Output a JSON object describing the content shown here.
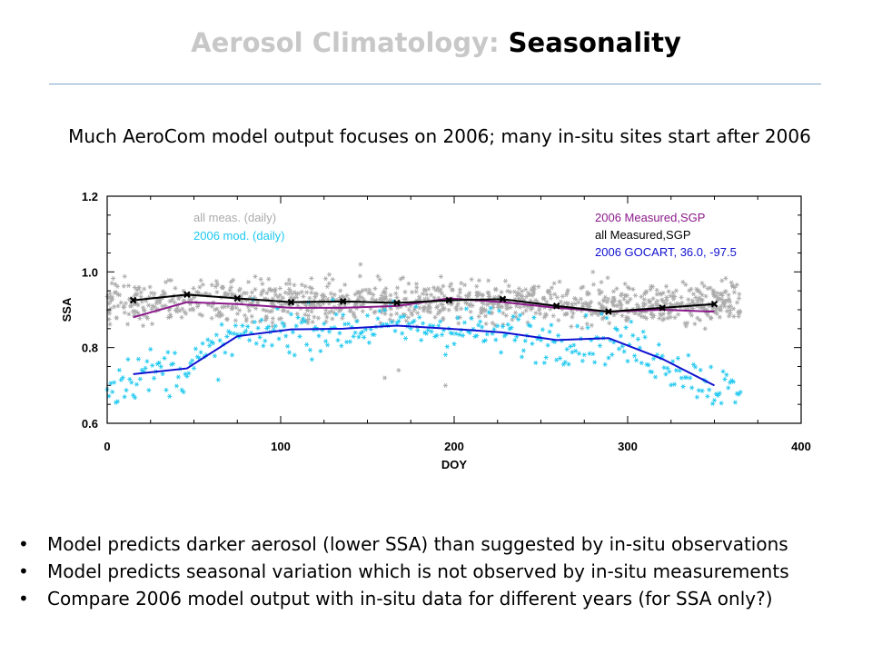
{
  "slide": {
    "title_part1": "Aerosol Climatology: ",
    "title_part2": "Seasonality",
    "subtitle": "Much AeroCom model output focuses on 2006; many in-situ sites start after 2006",
    "bullets": [
      "Model predicts darker aerosol (lower SSA) than suggested by in-situ observations",
      "Model predicts seasonal variation which is not observed by in-situ measurements",
      "Compare 2006 model output with in-situ data for different years (for SSA only?)"
    ],
    "bullet_glyph": "•"
  },
  "chart_data": {
    "type": "scatter",
    "xlabel": "DOY",
    "ylabel": "SSA",
    "xlim": [
      0,
      400
    ],
    "ylim": [
      0.6,
      1.2
    ],
    "xticks": [
      0,
      100,
      200,
      300,
      400
    ],
    "yticks": [
      0.6,
      0.8,
      1.0,
      1.2
    ],
    "xtick_labels": [
      "0",
      "100",
      "200",
      "300",
      "400"
    ],
    "ytick_labels": [
      "0.6",
      "0.8",
      "1.0",
      "1.2"
    ],
    "grid": false,
    "legend_left": [
      {
        "label": "all meas. (daily)",
        "color": "#aaaaaa"
      },
      {
        "label": "2006 mod. (daily)",
        "color": "#1ec8f0"
      }
    ],
    "legend_right": [
      {
        "label": "2006 Measured,SGP",
        "color": "#8b1a8b"
      },
      {
        "label": "all Measured,SGP",
        "color": "#000000"
      },
      {
        "label": "2006 GOCART,  36.0,  -97.5",
        "color": "#1010d0"
      }
    ],
    "scatter_series": [
      {
        "name": "all meas. (daily)",
        "color": "#aaaaaa",
        "marker": "asterisk",
        "x_range": [
          0,
          365
        ],
        "center": 0.92,
        "spread": 0.05,
        "outliers": [
          [
            146,
            1.02
          ],
          [
            160,
            0.72
          ],
          [
            168,
            0.74
          ],
          [
            195,
            0.7
          ],
          [
            210,
            0.98
          ],
          [
            280,
            1.0
          ],
          [
            130,
            0.98
          ]
        ]
      },
      {
        "name": "2006 mod. (daily)",
        "color": "#1ec8f0",
        "marker": "asterisk",
        "x_range": [
          0,
          365
        ]
      }
    ],
    "line_series": [
      {
        "name": "all Measured,SGP",
        "color": "#000000",
        "marker": "x",
        "x": [
          15,
          46,
          75,
          106,
          136,
          167,
          197,
          228,
          259,
          289,
          320,
          350
        ],
        "y": [
          0.925,
          0.94,
          0.93,
          0.92,
          0.922,
          0.918,
          0.925,
          0.928,
          0.91,
          0.895,
          0.905,
          0.915
        ]
      },
      {
        "name": "2006 Measured,SGP",
        "color": "#8b1a8b",
        "x": [
          15,
          46,
          75,
          106,
          136,
          167,
          197,
          228,
          259,
          289,
          320,
          350
        ],
        "y": [
          0.88,
          0.92,
          0.915,
          0.905,
          0.905,
          0.91,
          0.93,
          0.92,
          0.905,
          0.895,
          0.9,
          0.895
        ]
      },
      {
        "name": "2006 GOCART,  36.0,  -97.5",
        "color": "#1010d0",
        "x": [
          15,
          46,
          75,
          106,
          136,
          167,
          197,
          228,
          259,
          289,
          320,
          350
        ],
        "y": [
          0.73,
          0.745,
          0.83,
          0.848,
          0.85,
          0.858,
          0.85,
          0.84,
          0.82,
          0.825,
          0.77,
          0.7
        ]
      }
    ]
  }
}
